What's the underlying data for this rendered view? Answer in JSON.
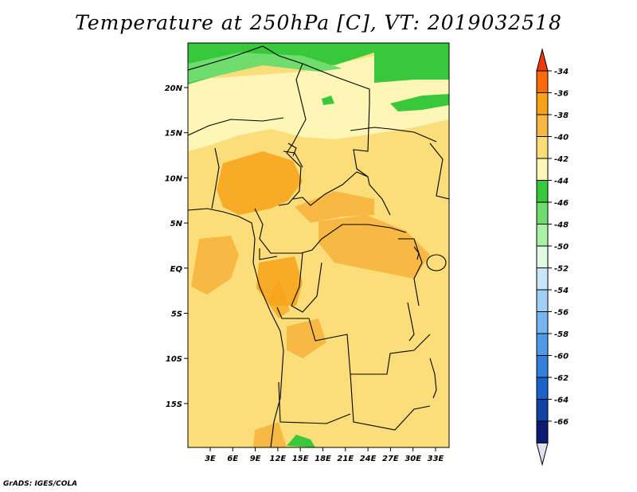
{
  "title": "Temperature at 250hPa [C], VT: 2019032518",
  "credit": "GrADS: IGES/COLA",
  "map": {
    "region": "Central Africa",
    "variable": "Temperature at 250hPa",
    "units": "C",
    "valid_time": "2019032518",
    "lat_labels": [
      "20N",
      "15N",
      "10N",
      "5N",
      "EQ",
      "5S",
      "10S",
      "15S"
    ],
    "lon_labels": [
      "3E",
      "6E",
      "9E",
      "12E",
      "15E",
      "18E",
      "21E",
      "24E",
      "27E",
      "30E",
      "33E"
    ]
  },
  "colorbar": {
    "labels": [
      "-34",
      "-36",
      "-38",
      "-40",
      "-42",
      "-44",
      "-46",
      "-48",
      "-50",
      "-52",
      "-54",
      "-56",
      "-58",
      "-60",
      "-62",
      "-64",
      "-66"
    ],
    "colors": [
      "#f03a0a",
      "#fa6a0a",
      "#f7a218",
      "#f8b944",
      "#fbde79",
      "#fdf6b6",
      "#39c83c",
      "#6fdc6e",
      "#aaf0a6",
      "#e1fbe3",
      "#c9e5f8",
      "#a2cff5",
      "#75b6ef",
      "#4f99e6",
      "#327fdc",
      "#1d62c8",
      "#0e43a4",
      "#0b1a72",
      "#e0e0f2"
    ]
  }
}
